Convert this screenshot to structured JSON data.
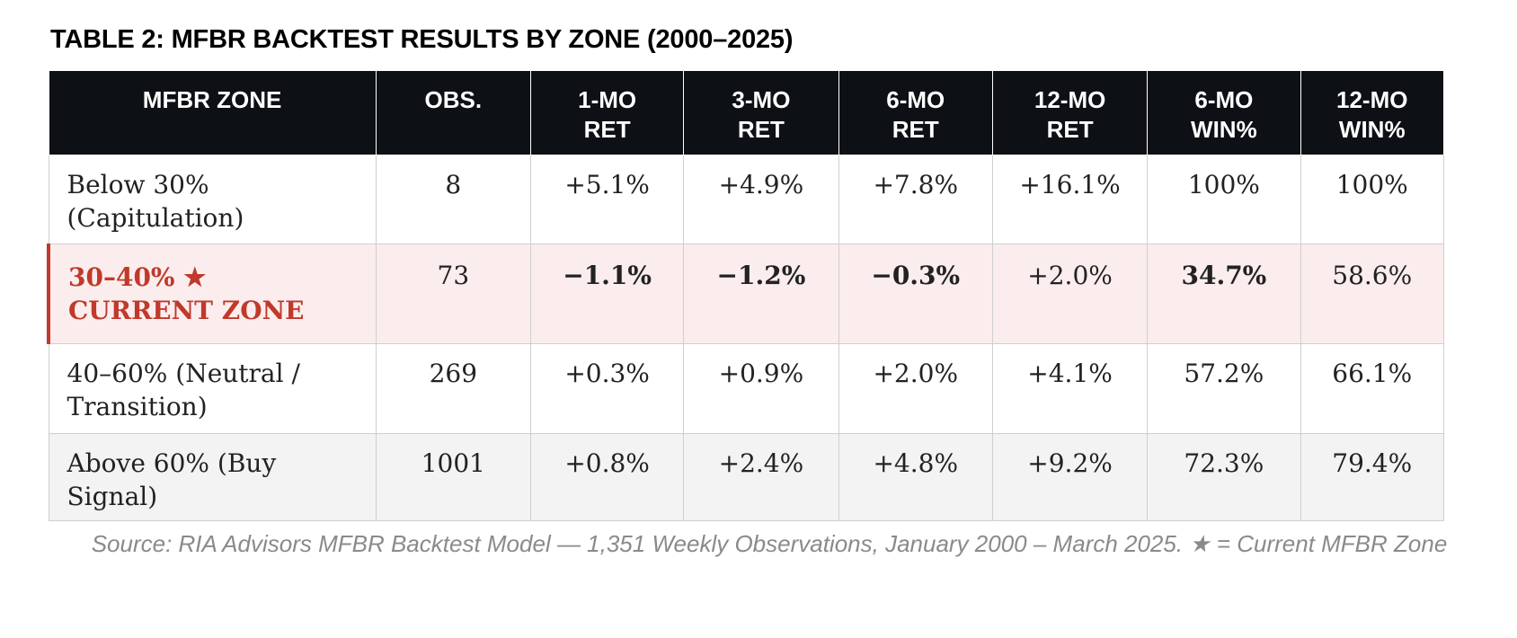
{
  "title": "TABLE 2: MFBR BACKTEST RESULTS BY ZONE (2000–2025)",
  "table": {
    "headers": [
      {
        "line1": "MFBR ZONE",
        "line2": ""
      },
      {
        "line1": "OBS.",
        "line2": ""
      },
      {
        "line1": "1-MO",
        "line2": "RET"
      },
      {
        "line1": "3-MO",
        "line2": "RET"
      },
      {
        "line1": "6-MO",
        "line2": "RET"
      },
      {
        "line1": "12-MO",
        "line2": "RET"
      },
      {
        "line1": "6-MO",
        "line2": "WIN%"
      },
      {
        "line1": "12-MO",
        "line2": "WIN%"
      }
    ],
    "rows": [
      {
        "zone_line1": "Below 30%",
        "zone_line2": "(Capitulation)",
        "obs": "8",
        "ret_1mo": "+5.1%",
        "ret_3mo": "+4.9%",
        "ret_6mo": "+7.8%",
        "ret_12mo": "+16.1%",
        "win_6mo": "100%",
        "win_12mo": "100%"
      },
      {
        "zone_line1": "30–40% ★",
        "zone_line2": "CURRENT ZONE",
        "obs": "73",
        "ret_1mo": "−1.1%",
        "ret_3mo": "−1.2%",
        "ret_6mo": "−0.3%",
        "ret_12mo": "+2.0%",
        "win_6mo": "34.7%",
        "win_12mo": "58.6%",
        "highlighted": true
      },
      {
        "zone_line1": "40–60% (Neutral /",
        "zone_line2": "Transition)",
        "obs": "269",
        "ret_1mo": "+0.3%",
        "ret_3mo": "+0.9%",
        "ret_6mo": "+2.0%",
        "ret_12mo": "+4.1%",
        "win_6mo": "57.2%",
        "win_12mo": "66.1%"
      },
      {
        "zone_line1": "Above 60% (Buy",
        "zone_line2": "Signal)",
        "obs": "1001",
        "ret_1mo": "+0.8%",
        "ret_3mo": "+2.4%",
        "ret_6mo": "+4.8%",
        "ret_12mo": "+9.2%",
        "win_6mo": "72.3%",
        "win_12mo": "79.4%"
      }
    ]
  },
  "source": "Source: RIA Advisors MFBR Backtest Model — 1,351 Weekly Observations, January 2000 – March 2025. ★ = Current MFBR Zone",
  "colors": {
    "header_bg": "#0d1014",
    "header_text": "#ffffff",
    "positive": "#2e7d32",
    "negative": "#c0392b",
    "highlight_row_bg": "#fbeded",
    "highlight_accent": "#c0392b",
    "alt_row_bg": "#f3f3f3",
    "source_text": "#8a8a8a"
  }
}
